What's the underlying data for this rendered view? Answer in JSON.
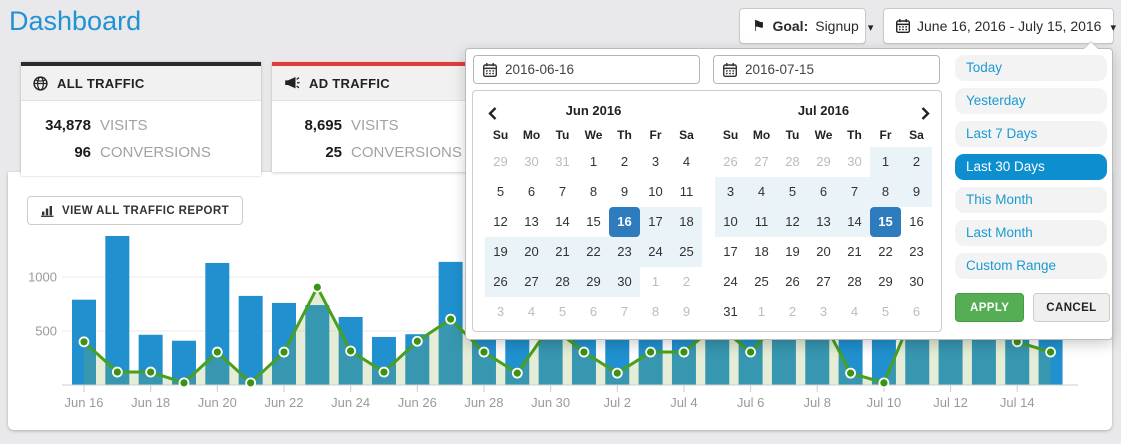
{
  "page": {
    "title": "Dashboard"
  },
  "header": {
    "goal_label": "Goal:",
    "goal_value": "Signup",
    "date_range_label": "June 16, 2016 - July 15, 2016",
    "icons": {
      "goal": "flag-icon",
      "date": "calendar-icon",
      "caret": "caret-down-icon"
    }
  },
  "cards": [
    {
      "title": "ALL TRAFFIC",
      "icon": "globe-icon",
      "accent_color": "#2b2b2b",
      "visits": "34,878",
      "visits_label": "VISITS",
      "conversions": "96",
      "conversions_label": "CONVERSIONS"
    },
    {
      "title": "AD TRAFFIC",
      "icon": "megaphone-icon",
      "accent_color": "#e23b3b",
      "visits": "8,695",
      "visits_label": "VISITS",
      "conversions": "25",
      "conversions_label": "CONVERSIONS"
    }
  ],
  "toolbar": {
    "view_report_label": "VIEW ALL TRAFFIC REPORT",
    "icon": "bar-chart-icon"
  },
  "datepicker": {
    "start_input": "2016-06-16",
    "end_input": "2016-07-15",
    "months": [
      {
        "title": "Jun 2016",
        "dow": [
          "Su",
          "Mo",
          "Tu",
          "We",
          "Th",
          "Fr",
          "Sa"
        ],
        "weeks": [
          [
            [
              "29",
              "o"
            ],
            [
              "30",
              "o"
            ],
            [
              "31",
              "o"
            ],
            [
              "1",
              "n"
            ],
            [
              "2",
              "n"
            ],
            [
              "3",
              "n"
            ],
            [
              "4",
              "n"
            ]
          ],
          [
            [
              "5",
              "n"
            ],
            [
              "6",
              "n"
            ],
            [
              "7",
              "n"
            ],
            [
              "8",
              "n"
            ],
            [
              "9",
              "n"
            ],
            [
              "10",
              "n"
            ],
            [
              "11",
              "n"
            ]
          ],
          [
            [
              "12",
              "n"
            ],
            [
              "13",
              "n"
            ],
            [
              "14",
              "n"
            ],
            [
              "15",
              "n"
            ],
            [
              "16",
              "s"
            ],
            [
              "17",
              "i"
            ],
            [
              "18",
              "i"
            ]
          ],
          [
            [
              "19",
              "i"
            ],
            [
              "20",
              "i"
            ],
            [
              "21",
              "i"
            ],
            [
              "22",
              "i"
            ],
            [
              "23",
              "i"
            ],
            [
              "24",
              "i"
            ],
            [
              "25",
              "i"
            ]
          ],
          [
            [
              "26",
              "i"
            ],
            [
              "27",
              "i"
            ],
            [
              "28",
              "i"
            ],
            [
              "29",
              "i"
            ],
            [
              "30",
              "i"
            ],
            [
              "1",
              "o"
            ],
            [
              "2",
              "o"
            ]
          ],
          [
            [
              "3",
              "o"
            ],
            [
              "4",
              "o"
            ],
            [
              "5",
              "o"
            ],
            [
              "6",
              "o"
            ],
            [
              "7",
              "o"
            ],
            [
              "8",
              "o"
            ],
            [
              "9",
              "o"
            ]
          ]
        ]
      },
      {
        "title": "Jul 2016",
        "dow": [
          "Su",
          "Mo",
          "Tu",
          "We",
          "Th",
          "Fr",
          "Sa"
        ],
        "weeks": [
          [
            [
              "26",
              "o"
            ],
            [
              "27",
              "o"
            ],
            [
              "28",
              "o"
            ],
            [
              "29",
              "o"
            ],
            [
              "30",
              "o"
            ],
            [
              "1",
              "i"
            ],
            [
              "2",
              "i"
            ]
          ],
          [
            [
              "3",
              "i"
            ],
            [
              "4",
              "i"
            ],
            [
              "5",
              "i"
            ],
            [
              "6",
              "i"
            ],
            [
              "7",
              "i"
            ],
            [
              "8",
              "i"
            ],
            [
              "9",
              "i"
            ]
          ],
          [
            [
              "10",
              "i"
            ],
            [
              "11",
              "i"
            ],
            [
              "12",
              "i"
            ],
            [
              "13",
              "i"
            ],
            [
              "14",
              "i"
            ],
            [
              "15",
              "s"
            ],
            [
              "16",
              "n"
            ]
          ],
          [
            [
              "17",
              "n"
            ],
            [
              "18",
              "n"
            ],
            [
              "19",
              "n"
            ],
            [
              "20",
              "n"
            ],
            [
              "21",
              "n"
            ],
            [
              "22",
              "n"
            ],
            [
              "23",
              "n"
            ]
          ],
          [
            [
              "24",
              "n"
            ],
            [
              "25",
              "n"
            ],
            [
              "26",
              "n"
            ],
            [
              "27",
              "n"
            ],
            [
              "28",
              "n"
            ],
            [
              "29",
              "n"
            ],
            [
              "30",
              "n"
            ]
          ],
          [
            [
              "31",
              "n"
            ],
            [
              "1",
              "o"
            ],
            [
              "2",
              "o"
            ],
            [
              "3",
              "o"
            ],
            [
              "4",
              "o"
            ],
            [
              "5",
              "o"
            ],
            [
              "6",
              "o"
            ]
          ]
        ]
      }
    ],
    "presets": [
      "Today",
      "Yesterday",
      "Last 7 Days",
      "Last 30 Days",
      "This Month",
      "Last Month",
      "Custom Range"
    ],
    "active_preset": "Last 30 Days",
    "apply_label": "APPLY",
    "cancel_label": "CANCEL",
    "selected_start_color": "#2e7cbe",
    "in_range_color": "#e9f3f8",
    "active_preset_color": "#0d8ecf"
  },
  "chart_data": {
    "type": "bar",
    "x": [
      "Jun 16",
      "Jun 17",
      "Jun 18",
      "Jun 19",
      "Jun 20",
      "Jun 21",
      "Jun 22",
      "Jun 23",
      "Jun 24",
      "Jun 25",
      "Jun 26",
      "Jun 27",
      "Jun 28",
      "Jun 29",
      "Jun 30",
      "Jul 1",
      "Jul 2",
      "Jul 3",
      "Jul 4",
      "Jul 5",
      "Jul 6",
      "Jul 7",
      "Jul 8",
      "Jul 9",
      "Jul 10",
      "Jul 11",
      "Jul 12",
      "Jul 13",
      "Jul 14",
      "Jul 15"
    ],
    "x_tick_labels": [
      "Jun 16",
      "Jun 18",
      "Jun 20",
      "Jun 22",
      "Jun 24",
      "Jun 26",
      "Jun 28",
      "Jun 30",
      "Jul 2",
      "Jul 4",
      "Jul 6",
      "Jul 8",
      "Jul 10",
      "Jul 12",
      "Jul 14"
    ],
    "x_tick_every": 2,
    "series": [
      {
        "name": "Visits",
        "type": "bar",
        "color": "#2090cf",
        "values": [
          790,
          1380,
          465,
          410,
          1130,
          825,
          760,
          740,
          630,
          445,
          470,
          1140,
          900,
          820,
          860,
          900,
          760,
          950,
          820,
          860,
          900,
          1000,
          830,
          780,
          900,
          860,
          950,
          820,
          1000,
          1140
        ]
      },
      {
        "name": "Conversions",
        "type": "line",
        "color": "#48a01e",
        "dot_color": "#3a9410",
        "values": [
          400,
          120,
          120,
          20,
          305,
          20,
          305,
          905,
          315,
          120,
          405,
          610,
          305,
          110,
          550,
          305,
          110,
          305,
          305,
          560,
          305,
          650,
          700,
          110,
          20,
          750,
          820,
          550,
          400,
          305
        ]
      }
    ],
    "area_fill": "rgba(135,175,70,0.22)",
    "y_ticks": [
      500,
      1000
    ],
    "ylim": [
      0,
      1400
    ],
    "grid": true,
    "legend": "none",
    "title": ""
  }
}
